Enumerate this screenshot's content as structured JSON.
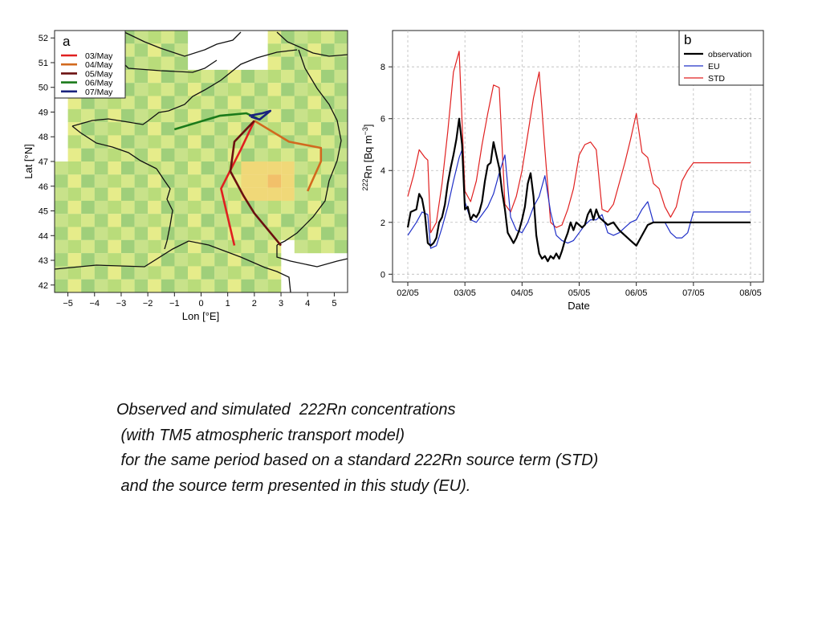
{
  "panel_a": {
    "label": "a",
    "xlabel": "Lon [°E]",
    "ylabel": "Lat [°N]",
    "xticks": [
      "−5",
      "−4",
      "−3",
      "−2",
      "−1",
      "0",
      "1",
      "2",
      "3",
      "4",
      "5"
    ],
    "yticks": [
      "42",
      "43",
      "44",
      "45",
      "46",
      "47",
      "48",
      "49",
      "50",
      "51",
      "52"
    ],
    "legend": [
      "03/May",
      "04/May",
      "05/May",
      "06/May",
      "07/May"
    ]
  },
  "chart_data": [
    {
      "type": "map",
      "panel": "a",
      "xlabel": "Lon [°E]",
      "ylabel": "Lat [°N]",
      "xlim": [
        -5.5,
        5.5
      ],
      "ylim": [
        41.7,
        52.3
      ],
      "colors": {
        "03/May": "#e02020",
        "04/May": "#d2691e",
        "05/May": "#6b1010",
        "06/May": "#1a7a1a",
        "07/May": "#1a237e"
      },
      "series": [
        {
          "name": "03/May",
          "lon": [
            2.0,
            1.5,
            0.75,
            1.25
          ],
          "lat": [
            48.65,
            47.5,
            45.9,
            43.6
          ]
        },
        {
          "name": "04/May",
          "lon": [
            2.0,
            3.3,
            4.5,
            4.5,
            4.0
          ],
          "lat": [
            48.65,
            47.8,
            47.55,
            47.0,
            45.8
          ]
        },
        {
          "name": "05/May",
          "lon": [
            2.0,
            1.25,
            1.1,
            1.6,
            2.0,
            3.0
          ],
          "lat": [
            48.65,
            47.8,
            46.6,
            45.6,
            44.9,
            43.6
          ]
        },
        {
          "name": "06/May",
          "lon": [
            -1.0,
            0.7,
            1.7,
            2.1
          ],
          "lat": [
            48.3,
            48.85,
            48.95,
            48.75
          ]
        },
        {
          "name": "07/May",
          "lon": [
            1.8,
            2.3,
            2.6,
            2.2,
            1.9,
            2.0
          ],
          "lat": [
            48.85,
            48.95,
            49.05,
            48.7,
            48.8,
            48.9
          ]
        }
      ]
    },
    {
      "type": "line",
      "panel": "b",
      "xlabel": "Date",
      "ylabel": "222Rn [Bq m-3]",
      "xticks": [
        "02/05",
        "03/05",
        "04/05",
        "05/05",
        "06/05",
        "07/05",
        "08/05"
      ],
      "ylim": [
        -0.3,
        9.4
      ],
      "yticks": [
        0,
        2,
        4,
        6,
        8
      ],
      "grid": true,
      "legend_position": "top-right",
      "series": [
        {
          "name": "observation",
          "color": "#000000",
          "x": [
            0,
            0.05,
            0.15,
            0.2,
            0.25,
            0.3,
            0.35,
            0.4,
            0.45,
            0.5,
            0.55,
            0.6,
            0.65,
            0.7,
            0.75,
            0.8,
            0.85,
            0.9,
            0.95,
            1.0,
            1.05,
            1.1,
            1.15,
            1.2,
            1.25,
            1.3,
            1.35,
            1.4,
            1.45,
            1.5,
            1.55,
            1.6,
            1.65,
            1.7,
            1.75,
            1.8,
            1.85,
            1.9,
            1.95,
            2.0,
            2.05,
            2.1,
            2.15,
            2.2,
            2.25,
            2.3,
            2.35,
            2.4,
            2.45,
            2.5,
            2.55,
            2.6,
            2.65,
            2.7,
            2.75,
            2.8,
            2.85,
            2.9,
            2.95,
            3.0,
            3.05,
            3.1,
            3.15,
            3.2,
            3.25,
            3.3,
            3.35,
            3.4,
            3.5,
            3.6,
            3.7,
            3.8,
            3.9,
            4.0,
            4.1,
            4.2,
            4.3,
            4.4,
            4.5,
            4.6,
            4.7,
            4.8,
            4.9,
            5.0,
            5.1,
            5.2,
            5.3,
            5.4,
            5.5,
            5.6,
            5.7,
            5.8,
            5.9,
            6.0
          ],
          "y": [
            1.8,
            2.4,
            2.5,
            3.1,
            2.9,
            2.3,
            1.2,
            1.1,
            1.2,
            1.4,
            2.0,
            2.2,
            2.7,
            3.5,
            4.1,
            4.6,
            5.2,
            6.0,
            5.0,
            2.5,
            2.6,
            2.1,
            2.3,
            2.2,
            2.4,
            2.8,
            3.6,
            4.2,
            4.3,
            5.1,
            4.6,
            4.1,
            3.2,
            2.5,
            1.6,
            1.4,
            1.2,
            1.4,
            1.7,
            2.1,
            2.6,
            3.5,
            3.9,
            3.0,
            1.5,
            0.8,
            0.6,
            0.7,
            0.5,
            0.7,
            0.6,
            0.8,
            0.6,
            0.9,
            1.3,
            1.6,
            2.0,
            1.7,
            2.0,
            1.9,
            1.8,
            1.9,
            2.3,
            2.5,
            2.1,
            2.5,
            2.2,
            2.1,
            1.9,
            2.0,
            1.7,
            1.5,
            1.3,
            1.1,
            1.5,
            1.9,
            2.0,
            2.0,
            2.0,
            2.0,
            2.0,
            2.0,
            2.0,
            2.0,
            2.0,
            2.0,
            2.0,
            2.0,
            2.0,
            2.0,
            2.0,
            2.0,
            2.0,
            2.0
          ]
        },
        {
          "name": "EU",
          "color": "#2030c8",
          "x": [
            0,
            0.15,
            0.25,
            0.35,
            0.4,
            0.5,
            0.6,
            0.7,
            0.8,
            0.9,
            0.95,
            1.0,
            1.1,
            1.2,
            1.3,
            1.4,
            1.5,
            1.6,
            1.7,
            1.8,
            1.9,
            2.0,
            2.1,
            2.2,
            2.3,
            2.4,
            2.5,
            2.6,
            2.7,
            2.8,
            2.9,
            3.0,
            3.1,
            3.2,
            3.3,
            3.4,
            3.5,
            3.6,
            3.7,
            3.8,
            3.9,
            4.0,
            4.1,
            4.2,
            4.3,
            4.4,
            4.5,
            4.6,
            4.7,
            4.8,
            4.9,
            5.0,
            5.1,
            5.2,
            5.3,
            5.4,
            5.5,
            5.6,
            5.7,
            5.8,
            5.9,
            6.0
          ],
          "y": [
            1.5,
            2.0,
            2.4,
            2.3,
            1.0,
            1.1,
            1.8,
            2.6,
            3.6,
            4.5,
            4.8,
            2.8,
            2.1,
            2.0,
            2.3,
            2.6,
            3.1,
            3.9,
            4.6,
            2.2,
            1.7,
            1.6,
            2.0,
            2.6,
            3.0,
            3.8,
            2.4,
            1.5,
            1.3,
            1.2,
            1.3,
            1.6,
            1.9,
            2.1,
            2.1,
            2.3,
            1.6,
            1.5,
            1.6,
            1.8,
            2.0,
            2.1,
            2.5,
            2.8,
            2.0,
            2.0,
            2.0,
            1.6,
            1.4,
            1.4,
            1.6,
            2.4,
            2.4,
            2.4,
            2.4,
            2.4,
            2.4,
            2.4,
            2.4,
            2.4,
            2.4,
            2.4
          ]
        },
        {
          "name": "STD",
          "color": "#e02020",
          "x": [
            0,
            0.1,
            0.2,
            0.3,
            0.35,
            0.4,
            0.5,
            0.6,
            0.7,
            0.8,
            0.9,
            1.0,
            1.05,
            1.1,
            1.2,
            1.3,
            1.4,
            1.5,
            1.6,
            1.7,
            1.8,
            1.9,
            2.0,
            2.1,
            2.2,
            2.3,
            2.4,
            2.5,
            2.6,
            2.7,
            2.8,
            2.9,
            3.0,
            3.1,
            3.2,
            3.3,
            3.4,
            3.5,
            3.6,
            3.7,
            3.8,
            3.9,
            4.0,
            4.1,
            4.2,
            4.3,
            4.4,
            4.5,
            4.6,
            4.7,
            4.8,
            4.9,
            5.0,
            5.1,
            5.2,
            5.3,
            5.4,
            5.5,
            5.6,
            5.7,
            5.8,
            5.9,
            6.0
          ],
          "y": [
            3.0,
            3.8,
            4.8,
            4.5,
            4.4,
            1.6,
            2.0,
            3.5,
            5.5,
            7.8,
            8.6,
            3.2,
            3.0,
            2.8,
            3.6,
            5.0,
            6.2,
            7.3,
            7.2,
            2.7,
            2.4,
            3.0,
            4.0,
            5.4,
            6.8,
            7.8,
            4.8,
            2.0,
            1.8,
            1.9,
            2.5,
            3.3,
            4.6,
            5.0,
            5.1,
            4.8,
            2.5,
            2.4,
            2.7,
            3.5,
            4.3,
            5.2,
            6.2,
            4.7,
            4.5,
            3.5,
            3.3,
            2.6,
            2.2,
            2.6,
            3.6,
            4.0,
            4.3,
            4.3,
            4.3,
            4.3,
            4.3,
            4.3,
            4.3,
            4.3,
            4.3,
            4.3,
            4.3
          ]
        }
      ]
    }
  ],
  "panel_b": {
    "label": "b",
    "xlabel": "Date",
    "ylabel_sup": "222",
    "ylabel_main": "Rn [Bq m",
    "ylabel_sup2": "−3",
    "ylabel_end": "]",
    "legend": [
      "observation",
      "EU",
      "STD"
    ]
  },
  "caption": {
    "line1": "Observed and simulated  222Rn concentrations",
    "line2": " (with TM5 atmospheric transport model)",
    "line3": " for the same period based on a standard 222Rn source term (STD)",
    "line4": " and the source term presented in this study (EU)."
  }
}
